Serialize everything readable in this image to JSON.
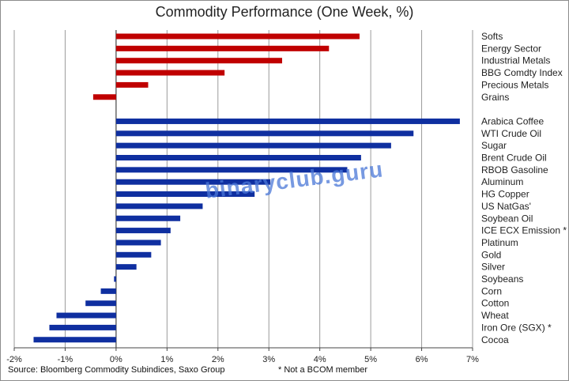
{
  "chart_data": {
    "type": "bar",
    "orientation": "horizontal",
    "title": "Commodity Performance (One Week, %)",
    "xlim": [
      -2,
      7
    ],
    "x_ticks": [
      "-2%",
      "-1%",
      "0%",
      "1%",
      "2%",
      "3%",
      "4%",
      "5%",
      "6%",
      "7%"
    ],
    "grid": "vertical",
    "groups": [
      {
        "color": "#c00000",
        "categories": [
          "Softs",
          "Energy Sector",
          "Industrial Metals",
          "BBG Comdty Index",
          "Precious Metals",
          "Grains"
        ],
        "values": [
          4.78,
          4.18,
          3.26,
          2.13,
          0.63,
          -0.45
        ]
      },
      {
        "color": "#0f2fa0",
        "categories": [
          "Arabica Coffee",
          "WTI Crude Oil",
          "Sugar",
          "Brent Crude Oil",
          "RBOB Gasoline",
          "Aluminum",
          "HG Copper",
          "US NatGas'",
          "Soybean Oil",
          "ICE ECX Emission *",
          "Platinum",
          "Gold",
          "Silver",
          "Soybeans",
          "Corn",
          "Cotton",
          "Wheat",
          "Iron Ore (SGX) *",
          "Cocoa"
        ],
        "values": [
          6.75,
          5.84,
          5.4,
          4.81,
          4.54,
          3.03,
          2.72,
          1.7,
          1.26,
          1.07,
          0.88,
          0.69,
          0.4,
          -0.04,
          -0.3,
          -0.6,
          -1.17,
          -1.31,
          -1.62
        ]
      }
    ]
  },
  "footer": {
    "source": "Source: Bloomberg Commodity Subindices, Saxo Group",
    "note": "* Not a BCOM member"
  },
  "watermark": "binaryclub.guru"
}
